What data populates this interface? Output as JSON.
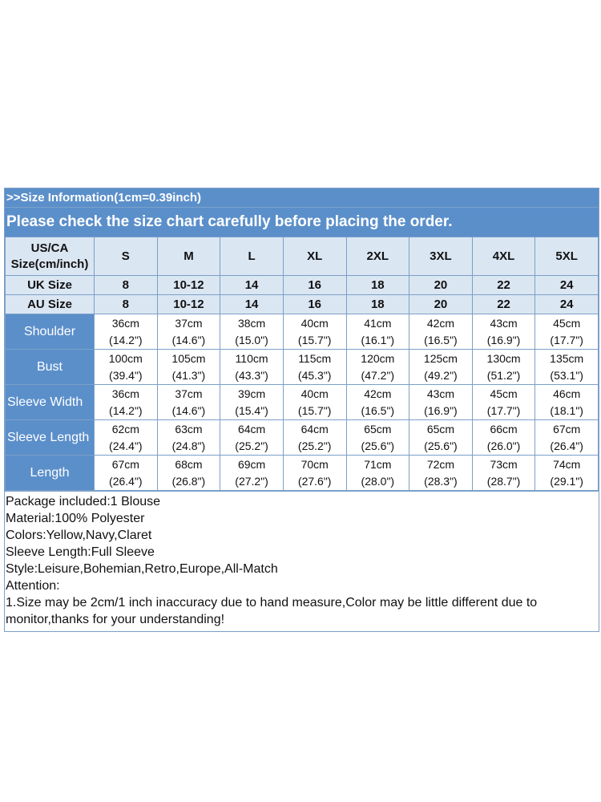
{
  "header": {
    "info": ">>Size Information(1cm=0.39inch)",
    "notice": "Please check the size chart carefully before placing the order."
  },
  "size_rows": [
    {
      "label": "US/CA Size(cm/inch)",
      "label_lines": [
        "US/CA",
        "Size(cm/inch)"
      ],
      "values": [
        "S",
        "M",
        "L",
        "XL",
        "2XL",
        "3XL",
        "4XL",
        "5XL"
      ]
    },
    {
      "label": "UK Size",
      "values": [
        "8",
        "10-12",
        "14",
        "16",
        "18",
        "20",
        "22",
        "24"
      ]
    },
    {
      "label": "AU Size",
      "values": [
        "8",
        "10-12",
        "14",
        "16",
        "18",
        "20",
        "22",
        "24"
      ]
    }
  ],
  "measurements": [
    {
      "label": "Shoulder",
      "cm": [
        "36cm",
        "37cm",
        "38cm",
        "40cm",
        "41cm",
        "42cm",
        "43cm",
        "45cm"
      ],
      "inch": [
        "(14.2\")",
        "(14.6\")",
        "(15.0\")",
        "(15.7\")",
        "(16.1\")",
        "(16.5\")",
        "(16.9\")",
        "(17.7\")"
      ]
    },
    {
      "label": "Bust",
      "cm": [
        "100cm",
        "105cm",
        "110cm",
        "115cm",
        "120cm",
        "125cm",
        "130cm",
        "135cm"
      ],
      "inch": [
        "(39.4\")",
        "(41.3\")",
        "(43.3\")",
        "(45.3\")",
        "(47.2\")",
        "(49.2\")",
        "(51.2\")",
        "(53.1\")"
      ]
    },
    {
      "label": "Sleeve Width",
      "cm": [
        "36cm",
        "37cm",
        "39cm",
        "40cm",
        "42cm",
        "43cm",
        "45cm",
        "46cm"
      ],
      "inch": [
        "(14.2\")",
        "(14.6\")",
        "(15.4\")",
        "(15.7\")",
        "(16.5\")",
        "(16.9\")",
        "(17.7\")",
        "(18.1\")"
      ]
    },
    {
      "label": "Sleeve Length",
      "cm": [
        "62cm",
        "63cm",
        "64cm",
        "64cm",
        "65cm",
        "65cm",
        "66cm",
        "67cm"
      ],
      "inch": [
        "(24.4\")",
        "(24.8\")",
        "(25.2\")",
        "(25.2\")",
        "(25.6\")",
        "(25.6\")",
        "(26.0\")",
        "(26.4\")"
      ]
    },
    {
      "label": "Length",
      "cm": [
        "67cm",
        "68cm",
        "69cm",
        "70cm",
        "71cm",
        "72cm",
        "73cm",
        "74cm"
      ],
      "inch": [
        "(26.4\")",
        "(26.8\")",
        "(27.2\")",
        "(27.6\")",
        "(28.0\")",
        "(28.3\")",
        "(28.7\")",
        "(29.1\")"
      ]
    }
  ],
  "notes": {
    "package": "Package included:1 Blouse",
    "material": "Material:100% Polyester",
    "colors": "Colors:Yellow,Navy,Claret",
    "sleeve": "Sleeve Length:Full Sleeve",
    "style": "Style:Leisure,Bohemian,Retro,Europe,All-Match",
    "attention": "Attention:",
    "disclaimer": "1.Size may be 2cm/1 inch inaccuracy due to hand measure,Color may be little different due to monitor,thanks for your understanding!"
  },
  "colors": {
    "header_blue": "#5b8fca",
    "light_blue": "#dbe6f3",
    "border": "#7aa0c8"
  }
}
